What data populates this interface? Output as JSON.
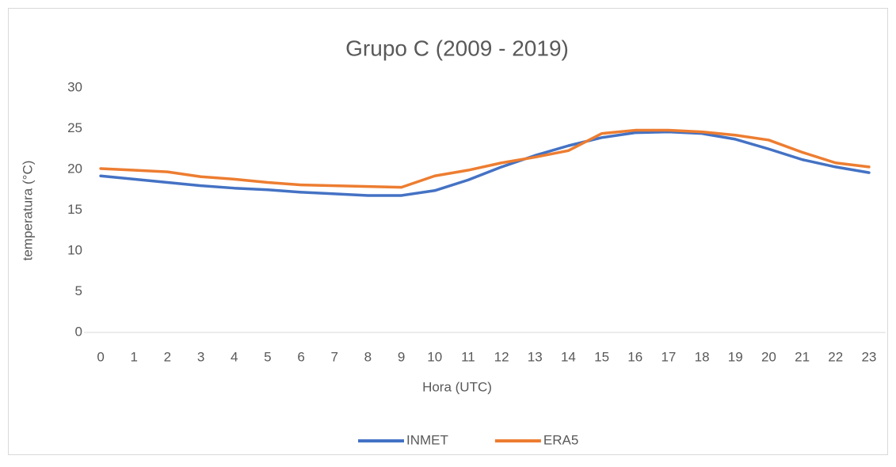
{
  "chart_data": {
    "type": "line",
    "title": "Grupo C (2009 - 2019)",
    "x_label": "Hora (UTC)",
    "y_label": "temperatura (°C)",
    "categories": [
      "0",
      "1",
      "2",
      "3",
      "4",
      "5",
      "6",
      "7",
      "8",
      "9",
      "10",
      "11",
      "12",
      "13",
      "14",
      "15",
      "16",
      "17",
      "18",
      "19",
      "20",
      "21",
      "22",
      "23"
    ],
    "series": [
      {
        "name": "INMET",
        "color": "#4472c4",
        "values": [
          19.2,
          18.8,
          18.4,
          18.0,
          17.7,
          17.5,
          17.2,
          17.0,
          16.8,
          16.8,
          17.4,
          18.7,
          20.3,
          21.7,
          22.9,
          23.9,
          24.5,
          24.6,
          24.4,
          23.7,
          22.5,
          21.2,
          20.3,
          19.6
        ]
      },
      {
        "name": "ERA5",
        "color": "#ed7d31",
        "values": [
          20.1,
          19.9,
          19.7,
          19.1,
          18.8,
          18.4,
          18.1,
          18.0,
          17.9,
          17.8,
          19.2,
          19.9,
          20.8,
          21.5,
          22.3,
          24.4,
          24.8,
          24.8,
          24.6,
          24.2,
          23.6,
          22.1,
          20.8,
          20.3
        ]
      }
    ],
    "ylim": [
      0,
      30
    ],
    "yticks": [
      0,
      5,
      10,
      15,
      20,
      25,
      30
    ],
    "grid": false,
    "legend": "bottom"
  }
}
